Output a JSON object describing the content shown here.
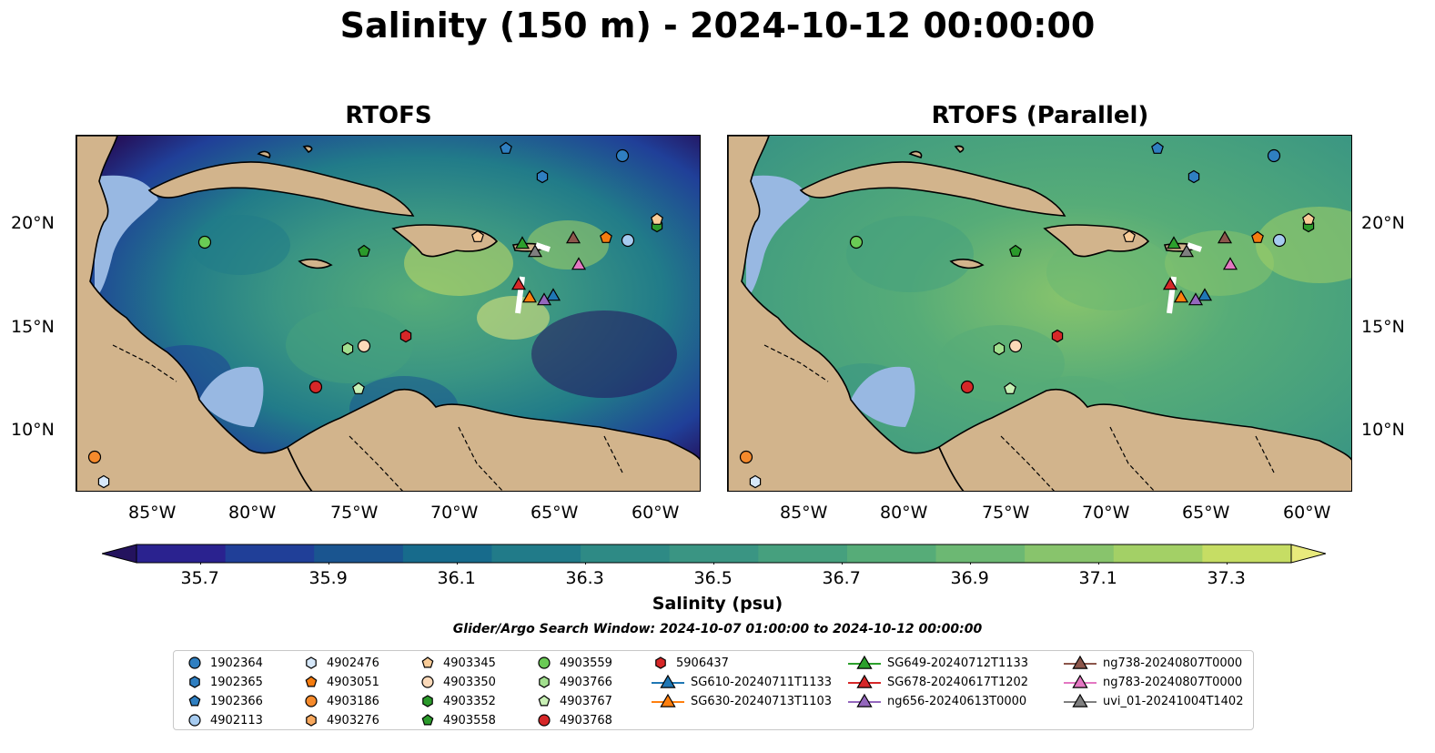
{
  "title": "Salinity (150 m) - 2024-10-12 00:00:00",
  "panels": [
    {
      "title": "RTOFS"
    },
    {
      "title": "RTOFS (Parallel)"
    }
  ],
  "axes": {
    "lat_labels": [
      "20°N",
      "15°N",
      "10°N"
    ],
    "lon_labels": [
      "85°W",
      "80°W",
      "75°W",
      "70°W",
      "65°W",
      "60°W"
    ]
  },
  "colorbar": {
    "ticks": [
      "35.7",
      "35.9",
      "36.1",
      "36.3",
      "36.5",
      "36.7",
      "36.9",
      "37.1",
      "37.3"
    ],
    "label": "Salinity (psu)",
    "range": [
      35.6,
      37.4
    ],
    "step": 0.1,
    "colors": [
      "#24135e",
      "#2a228f",
      "#203f98",
      "#1a5590",
      "#176b8c",
      "#217b89",
      "#2e8a85",
      "#3a9583",
      "#46a07e",
      "#56ac78",
      "#6cb873",
      "#88c46c",
      "#a3d066",
      "#c6dd64",
      "#e8ea7c"
    ]
  },
  "search_window": "Glider/Argo Search Window: 2024-10-07 01:00:00 to 2024-10-12 00:00:00",
  "legend": [
    {
      "label": "1902364",
      "marker": "circle",
      "color": "#2f7fc1"
    },
    {
      "label": "1902365",
      "marker": "hexagon",
      "color": "#2f7fc1"
    },
    {
      "label": "1902366",
      "marker": "pentagon",
      "color": "#2f7fc1"
    },
    {
      "label": "4902113",
      "marker": "circle",
      "color": "#a6cbf0"
    },
    {
      "label": "4902476",
      "marker": "hexagon",
      "color": "#d6e8fa"
    },
    {
      "label": "4903051",
      "marker": "pentagon",
      "color": "#f57c0f"
    },
    {
      "label": "4903186",
      "marker": "circle",
      "color": "#f58a2c"
    },
    {
      "label": "4903276",
      "marker": "hexagon",
      "color": "#f7a85e"
    },
    {
      "label": "4903345",
      "marker": "pentagon",
      "color": "#f9cc98"
    },
    {
      "label": "4903350",
      "marker": "circle",
      "color": "#fbd9b9"
    },
    {
      "label": "4903352",
      "marker": "hexagon",
      "color": "#2b9a2b"
    },
    {
      "label": "4903558",
      "marker": "pentagon",
      "color": "#2b9a2b"
    },
    {
      "label": "4903559",
      "marker": "circle",
      "color": "#6acb55"
    },
    {
      "label": "4903766",
      "marker": "hexagon",
      "color": "#a2df8e"
    },
    {
      "label": "4903767",
      "marker": "pentagon",
      "color": "#c9f0b5"
    },
    {
      "label": "4903768",
      "marker": "circle",
      "color": "#d62728"
    },
    {
      "label": "5906437",
      "marker": "hexagon",
      "color": "#d62728"
    },
    {
      "label": "SG610-20240711T1133",
      "marker": "triangle-line",
      "color": "#1f77b4"
    },
    {
      "label": "SG630-20240713T1103",
      "marker": "triangle-line",
      "color": "#ff7f0e"
    },
    {
      "label": "SG649-20240712T1133",
      "marker": "triangle-line",
      "color": "#2ca02c"
    },
    {
      "label": "SG678-20240617T1202",
      "marker": "triangle-line",
      "color": "#d62728"
    },
    {
      "label": "ng656-20240613T0000",
      "marker": "triangle-line",
      "color": "#9467bd"
    },
    {
      "label": "ng738-20240807T0000",
      "marker": "triangle-line",
      "color": "#8c564b"
    },
    {
      "label": "ng783-20240807T0000",
      "marker": "triangle-line",
      "color": "#e377c2"
    },
    {
      "label": "uvi_01-20241004T1402",
      "marker": "triangle-line",
      "color": "#7f7f7f"
    }
  ],
  "colors": {
    "land": "#d2b48c",
    "shelf": "#98b8e2",
    "panel1_sea": "#2e8a85",
    "panel2_sea": "#46a07e"
  }
}
